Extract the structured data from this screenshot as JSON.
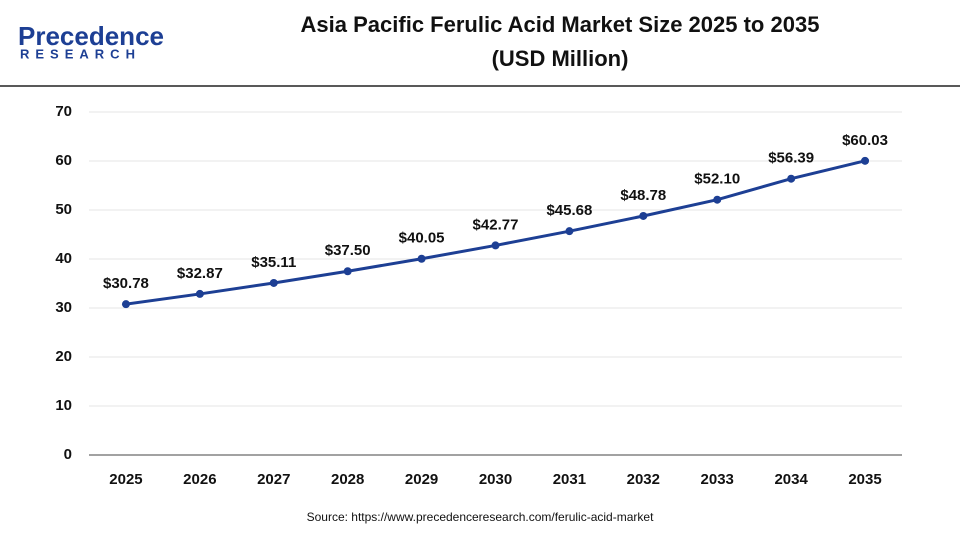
{
  "logo": {
    "name": "Precedence",
    "tagline": "RESEARCH"
  },
  "chart_data": {
    "type": "line",
    "title": "Asia Pacific Ferulic Acid Market Size 2025 to 2035",
    "subtitle": "(USD Million)",
    "source": "Source: https://www.precedenceresearch.com/ferulic-acid-market",
    "categories": [
      "2025",
      "2026",
      "2027",
      "2028",
      "2029",
      "2030",
      "2031",
      "2032",
      "2033",
      "2034",
      "2035"
    ],
    "series": [
      {
        "name": "Market Size",
        "color": "#1d3f94",
        "values": [
          30.78,
          32.87,
          35.11,
          37.5,
          40.05,
          42.77,
          45.68,
          48.78,
          52.1,
          56.39,
          60.03
        ],
        "value_labels": [
          "$30.78",
          "$32.87",
          "$35.11",
          "$37.50",
          "$40.05",
          "$42.77",
          "$45.68",
          "$48.78",
          "$52.10",
          "$56.39",
          "$60.03"
        ]
      }
    ],
    "ylim": [
      0,
      70
    ],
    "yticks": [
      0,
      10,
      20,
      30,
      40,
      50,
      60,
      70
    ],
    "grid": true
  }
}
